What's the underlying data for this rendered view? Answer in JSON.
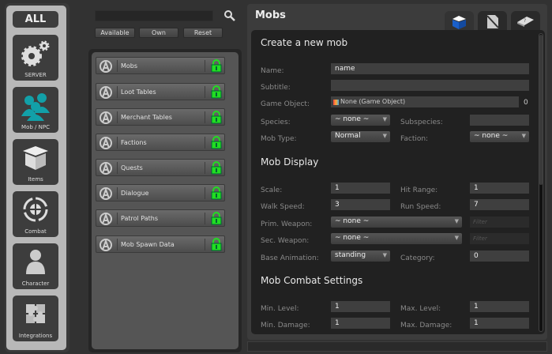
{
  "sidebar": {
    "all_label": "ALL",
    "categories": [
      {
        "label": "SERVER",
        "icon": "gears-icon"
      },
      {
        "label": "Mob / NPC",
        "icon": "people-icon"
      },
      {
        "label": "Items",
        "icon": "box-icon"
      },
      {
        "label": "Combat",
        "icon": "crosshair-icon"
      },
      {
        "label": "Character",
        "icon": "person-icon"
      },
      {
        "label": "Integrations",
        "icon": "puzzle-icon"
      }
    ]
  },
  "filters": {
    "search_value": "",
    "available": "Available",
    "own": "Own",
    "reset": "Reset"
  },
  "plugins": [
    {
      "label": "Mobs"
    },
    {
      "label": "Loot Tables"
    },
    {
      "label": "Merchant Tables"
    },
    {
      "label": "Factions"
    },
    {
      "label": "Quests"
    },
    {
      "label": "Dialogue"
    },
    {
      "label": "Patrol Paths"
    },
    {
      "label": "Mob Spawn Data"
    }
  ],
  "colors": {
    "accent_teal": "#12a0a8",
    "lock_green": "#22dd22",
    "tab_blue": "#1a5fc8"
  },
  "main": {
    "title": "Mobs",
    "tabs": [
      "create-icon",
      "edit-icon",
      "help-icon"
    ],
    "form": {
      "heading": "Create a new mob",
      "name_label": "Name:",
      "name": "name",
      "subtitle_label": "Subtitle:",
      "subtitle": "",
      "game_object_label": "Game Object:",
      "game_object": "None (Game Object)",
      "game_object_suffix": "0",
      "species_label": "Species:",
      "species": "~ none ~",
      "subspecies_label": "Subspecies:",
      "subspecies": "",
      "mob_type_label": "Mob Type:",
      "mob_type": "Normal",
      "faction_label": "Faction:",
      "faction": "~ none ~",
      "display_heading": "Mob Display",
      "scale_label": "Scale:",
      "scale": "1",
      "hit_range_label": "Hit Range:",
      "hit_range": "1",
      "walk_speed_label": "Walk Speed:",
      "walk_speed": "3",
      "run_speed_label": "Run Speed:",
      "run_speed": "7",
      "prim_weapon_label": "Prim. Weapon:",
      "prim_weapon": "~ none ~",
      "sec_weapon_label": "Sec. Weapon:",
      "sec_weapon": "~ none ~",
      "filter_placeholder": "Filter",
      "base_anim_label": "Base Animation:",
      "base_anim": "standing",
      "category_label": "Category:",
      "category": "0",
      "combat_heading": "Mob Combat Settings",
      "min_level_label": "Min. Level:",
      "min_level": "1",
      "max_level_label": "Max. Level:",
      "max_level": "1",
      "min_damage_label": "Min. Damage:",
      "min_damage": "1",
      "max_damage_label": "Max. Damage:",
      "max_damage": "1"
    }
  }
}
